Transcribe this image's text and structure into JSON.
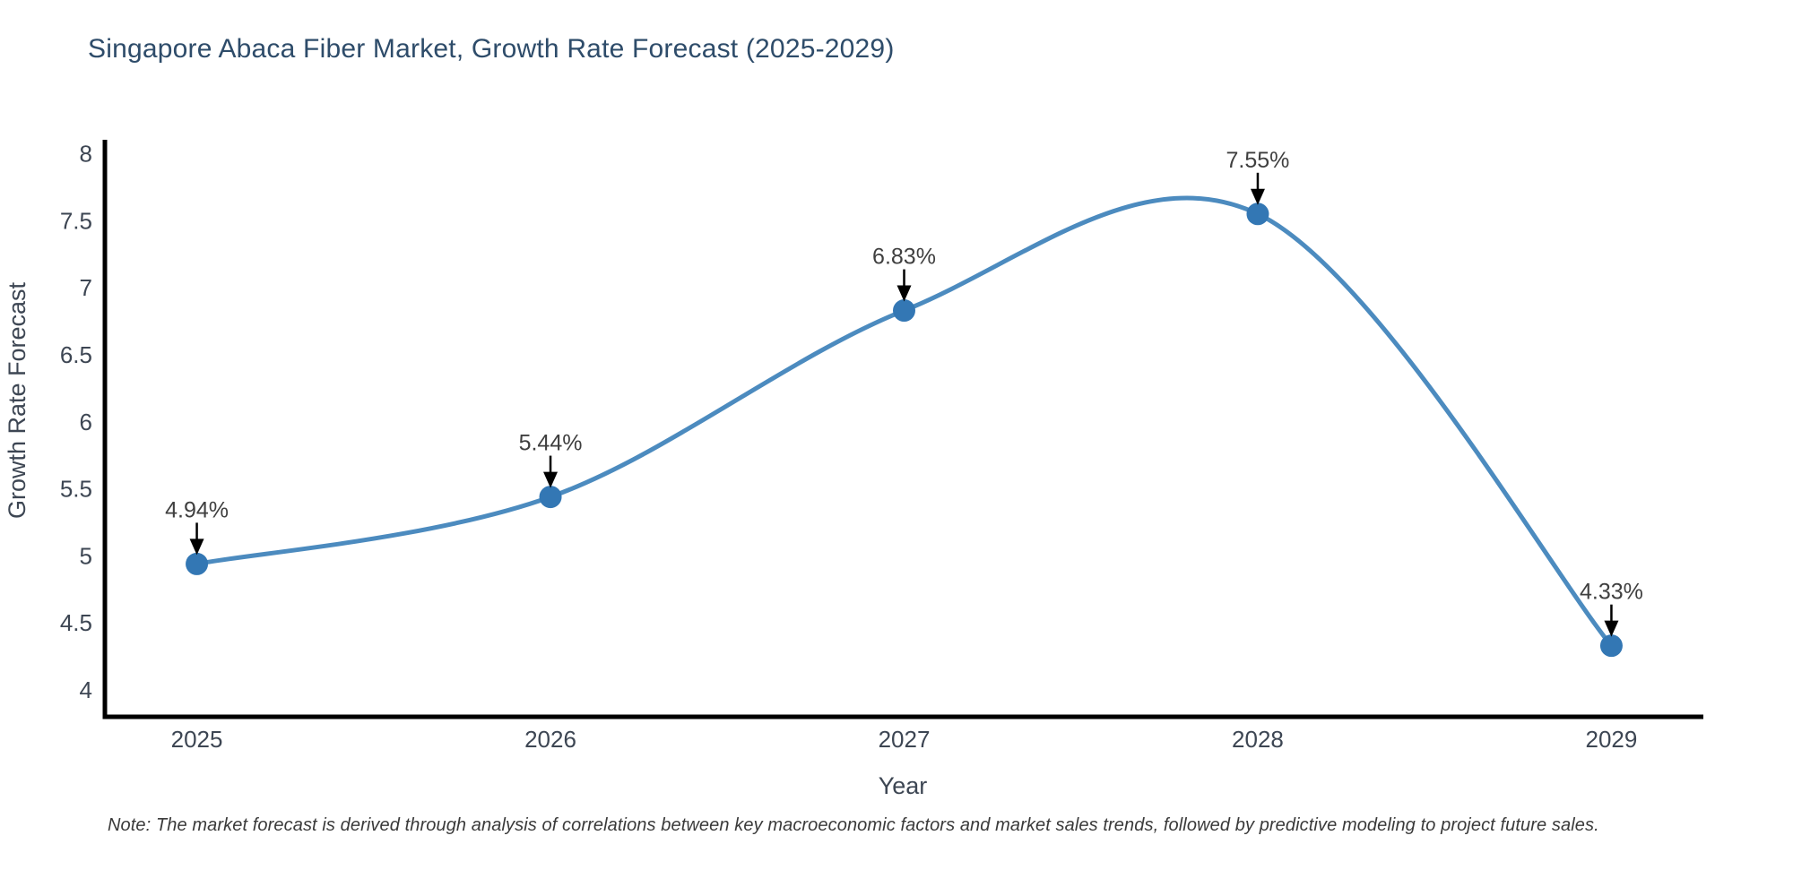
{
  "chart_data": {
    "type": "line",
    "title": "Singapore Abaca Fiber Market, Growth Rate Forecast (2025-2029)",
    "xlabel": "Year",
    "ylabel": "Growth Rate Forecast",
    "x": [
      2025,
      2026,
      2027,
      2028,
      2029
    ],
    "series": [
      {
        "name": "Growth Rate Forecast",
        "values": [
          4.94,
          5.44,
          6.83,
          7.55,
          4.33
        ],
        "point_labels": [
          "4.94%",
          "5.44%",
          "6.83%",
          "7.55%",
          "4.33%"
        ]
      }
    ],
    "yticks": [
      4,
      4.5,
      5,
      5.5,
      6,
      6.5,
      7,
      7.5,
      8
    ],
    "ylim": [
      3.8,
      8.09
    ],
    "xlim": [
      2024.74,
      2029.26
    ],
    "grid": false,
    "legend_position": "none",
    "line_shape": "spline",
    "annotations": "black down-arrows from percentage labels to each marker",
    "colors": {
      "line": "#4c8bbf",
      "marker": "#3377b4",
      "arrow": "#000000",
      "axis_spine": "#000000",
      "title_text": "#2e4c6a",
      "tick_text": "#3d4653",
      "axis_label_text": "#3d4653",
      "annotation_text": "#3f3f3f",
      "note_text": "#3a3a3a",
      "background": "#ffffff"
    }
  },
  "note": "Note: The market forecast is derived through analysis of correlations between key macroeconomic factors and market sales trends, followed by predictive modeling to project future sales."
}
